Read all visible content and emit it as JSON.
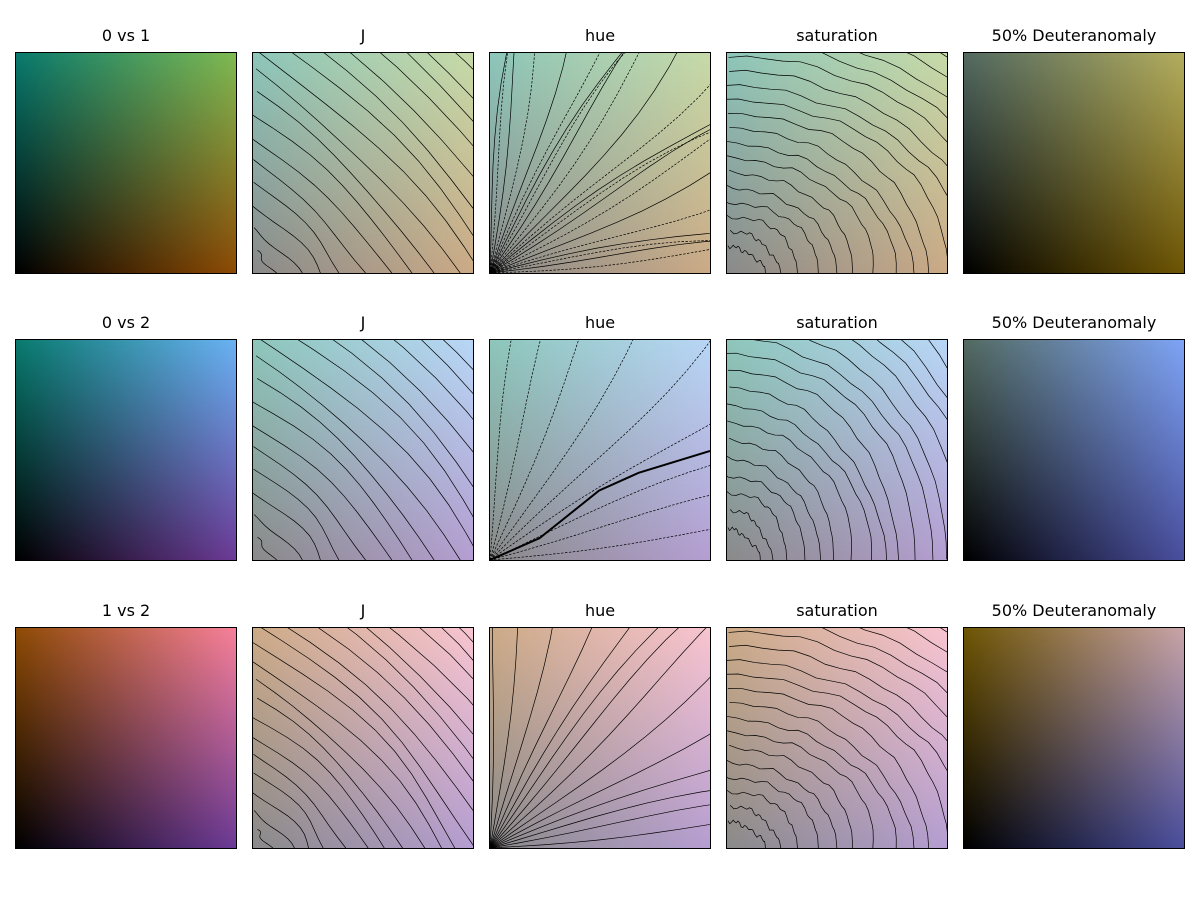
{
  "chart_data": {
    "type": "heatmap",
    "layout": {
      "rows": 3,
      "columns": 5
    },
    "rows": [
      {
        "panels": [
          {
            "title": "0 vs 1",
            "kind": "blend",
            "colors": {
              "bl": "#000000",
              "tl": "#097a6e",
              "tr": "#7fba52",
              "br": "#8e4b05"
            }
          },
          {
            "title": "J",
            "kind": "contour-j",
            "colors": {
              "bl": "#8a8a8a",
              "tl": "#8cc6ba",
              "tr": "#c6daa8",
              "br": "#ccaa86"
            }
          },
          {
            "title": "hue",
            "kind": "contour-hue",
            "colors": {
              "bl": "#8a8a8a",
              "tl": "#8cc6ba",
              "tr": "#c6daa8",
              "br": "#ccaa86"
            }
          },
          {
            "title": "saturation",
            "kind": "contour-sat",
            "colors": {
              "bl": "#8a8a8a",
              "tl": "#8cc6ba",
              "tr": "#c6daa8",
              "br": "#ccaa86"
            }
          },
          {
            "title": "50% Deuteranomaly",
            "kind": "blend",
            "colors": {
              "bl": "#000000",
              "tl": "#536a61",
              "tr": "#b3ad5e",
              "br": "#6e5504"
            }
          }
        ]
      },
      {
        "panels": [
          {
            "title": "0 vs 2",
            "kind": "blend",
            "colors": {
              "bl": "#000000",
              "tl": "#097a6e",
              "tr": "#6ab2f4",
              "br": "#6d3b97"
            }
          },
          {
            "title": "J",
            "kind": "contour-j",
            "colors": {
              "bl": "#8a8a8a",
              "tl": "#8cc6ba",
              "tr": "#b8d6f6",
              "br": "#b59ed2"
            }
          },
          {
            "title": "hue",
            "kind": "contour-hue",
            "colors": {
              "bl": "#8a8a8a",
              "tl": "#8cc6ba",
              "tr": "#b8d6f6",
              "br": "#b59ed2"
            }
          },
          {
            "title": "saturation",
            "kind": "contour-sat",
            "colors": {
              "bl": "#8a8a8a",
              "tl": "#8cc6ba",
              "tr": "#b8d6f6",
              "br": "#b59ed2"
            }
          },
          {
            "title": "50% Deuteranomaly",
            "kind": "blend",
            "colors": {
              "bl": "#000000",
              "tl": "#536a61",
              "tr": "#7ea4f6",
              "br": "#4a4f9e"
            }
          }
        ]
      },
      {
        "panels": [
          {
            "title": "1 vs 2",
            "kind": "blend",
            "colors": {
              "bl": "#000000",
              "tl": "#8e4b05",
              "tr": "#f7809a",
              "br": "#6d3b97"
            }
          },
          {
            "title": "J",
            "kind": "contour-j",
            "colors": {
              "bl": "#8a8a8a",
              "tl": "#ccaa86",
              "tr": "#f8c4d0",
              "br": "#b59ed2"
            }
          },
          {
            "title": "hue",
            "kind": "contour-hue",
            "colors": {
              "bl": "#8a8a8a",
              "tl": "#ccaa86",
              "tr": "#f8c4d0",
              "br": "#b59ed2"
            }
          },
          {
            "title": "saturation",
            "kind": "contour-sat",
            "colors": {
              "bl": "#8a8a8a",
              "tl": "#ccaa86",
              "tr": "#f8c4d0",
              "br": "#b59ed2"
            }
          },
          {
            "title": "50% Deuteranomaly",
            "kind": "blend",
            "colors": {
              "bl": "#000000",
              "tl": "#6e5504",
              "tr": "#c8a4a8",
              "br": "#4a4f9e"
            }
          }
        ]
      }
    ]
  }
}
